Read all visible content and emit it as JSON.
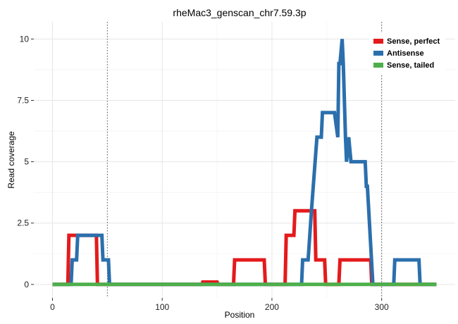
{
  "chart_data": {
    "type": "line",
    "title": "rheMac3_genscan_chr7.59.3p",
    "xlabel": "Position",
    "ylabel": "Read coverage",
    "xlim": [
      -17,
      367
    ],
    "ylim": [
      -0.55,
      10.7
    ],
    "x_ticks": [
      0,
      100,
      200,
      300
    ],
    "x_tick_labels": [
      "0",
      "100",
      "200",
      "300"
    ],
    "y_ticks": [
      0,
      2.5,
      5,
      7.5,
      10
    ],
    "y_tick_labels": [
      "0",
      "2.5",
      "5",
      "7.5",
      "10"
    ],
    "grid": true,
    "legend_position": "top-right",
    "vlines": [
      50,
      300
    ],
    "series": [
      {
        "name": "Sense, perfect",
        "color": "#e41a1c",
        "points": [
          [
            0,
            0
          ],
          [
            14,
            0
          ],
          [
            15,
            2
          ],
          [
            23,
            2
          ],
          [
            24,
            2
          ],
          [
            40,
            2
          ],
          [
            41,
            0
          ],
          [
            136,
            0
          ],
          [
            137,
            0.1
          ],
          [
            150,
            0.1
          ],
          [
            151,
            0
          ],
          [
            165,
            0
          ],
          [
            166,
            1
          ],
          [
            193,
            1
          ],
          [
            194,
            0
          ],
          [
            212,
            0
          ],
          [
            213,
            2
          ],
          [
            220,
            2
          ],
          [
            221,
            3
          ],
          [
            239,
            3
          ],
          [
            240,
            1
          ],
          [
            248,
            1
          ],
          [
            249,
            0
          ],
          [
            261,
            0
          ],
          [
            262,
            1
          ],
          [
            290,
            1
          ],
          [
            291,
            0
          ],
          [
            350,
            0
          ]
        ]
      },
      {
        "name": "Antisense",
        "color": "#2b6fad",
        "points": [
          [
            0,
            0
          ],
          [
            17,
            0
          ],
          [
            18,
            1
          ],
          [
            22,
            1
          ],
          [
            23,
            2
          ],
          [
            45,
            2
          ],
          [
            46,
            1
          ],
          [
            51,
            1
          ],
          [
            52,
            0
          ],
          [
            227,
            0
          ],
          [
            228,
            1
          ],
          [
            233,
            1
          ],
          [
            236,
            3
          ],
          [
            241,
            6
          ],
          [
            244,
            6
          ],
          [
            245,
            6
          ],
          [
            246,
            7
          ],
          [
            257,
            7
          ],
          [
            260,
            6
          ],
          [
            261,
            9
          ],
          [
            262,
            9
          ],
          [
            264,
            10
          ],
          [
            265,
            9
          ],
          [
            267,
            6
          ],
          [
            268,
            5
          ],
          [
            270,
            6
          ],
          [
            272,
            5
          ],
          [
            285,
            5
          ],
          [
            286,
            4
          ],
          [
            287,
            4
          ],
          [
            292,
            0
          ],
          [
            311,
            0
          ],
          [
            312,
            1
          ],
          [
            334,
            1
          ],
          [
            335,
            0
          ],
          [
            350,
            0
          ]
        ]
      },
      {
        "name": "Sense, tailed",
        "color": "#4daf4a",
        "points": [
          [
            0,
            0
          ],
          [
            350,
            0
          ]
        ]
      }
    ]
  }
}
